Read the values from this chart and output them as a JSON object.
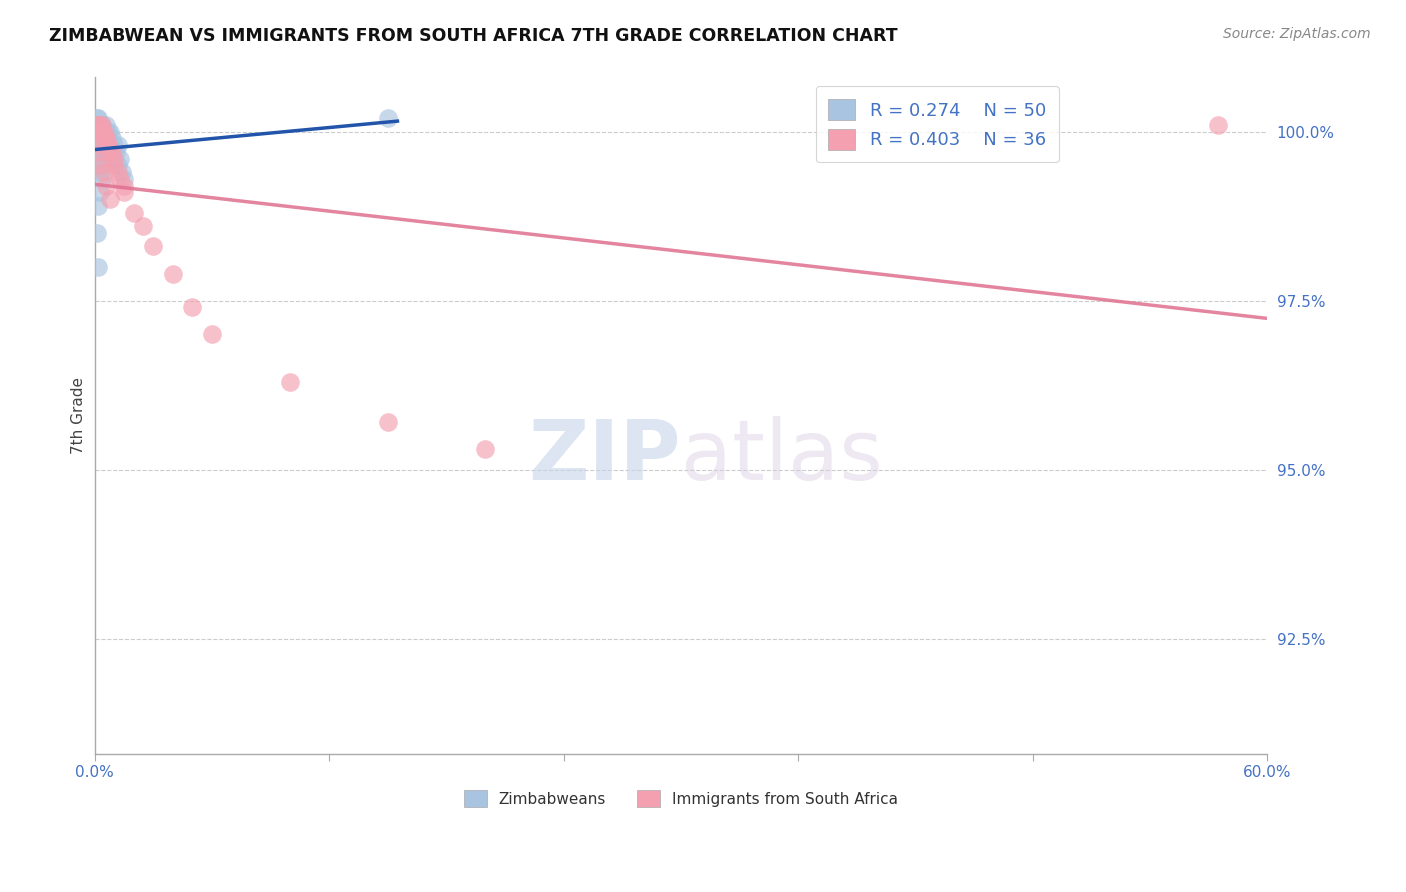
{
  "title": "ZIMBABWEAN VS IMMIGRANTS FROM SOUTH AFRICA 7TH GRADE CORRELATION CHART",
  "source": "Source: ZipAtlas.com",
  "label_blue": "Zimbabweans",
  "label_pink": "Immigrants from South Africa",
  "ylabel": "7th Grade",
  "xlim": [
    0.0,
    0.6
  ],
  "ylim": [
    0.908,
    1.008
  ],
  "yticks": [
    0.925,
    0.95,
    0.975,
    1.0
  ],
  "ytick_labels": [
    "92.5%",
    "95.0%",
    "97.5%",
    "100.0%"
  ],
  "xtick_pos": [
    0.0,
    0.12,
    0.24,
    0.36,
    0.48,
    0.6
  ],
  "xtick_labels": [
    "0.0%",
    "",
    "",
    "",
    "",
    "60.0%"
  ],
  "R_blue": 0.274,
  "N_blue": 50,
  "R_pink": 0.403,
  "N_pink": 36,
  "blue_color": "#a8c4e0",
  "pink_color": "#f4a0b0",
  "blue_line_color": "#2255aa",
  "pink_line_color": "#e07090",
  "watermark_zip": "ZIP",
  "watermark_atlas": "atlas",
  "blue_x": [
    0.001,
    0.001,
    0.001,
    0.001,
    0.001,
    0.002,
    0.002,
    0.002,
    0.002,
    0.002,
    0.002,
    0.002,
    0.002,
    0.003,
    0.003,
    0.003,
    0.003,
    0.003,
    0.003,
    0.004,
    0.004,
    0.004,
    0.004,
    0.005,
    0.005,
    0.005,
    0.006,
    0.006,
    0.007,
    0.007,
    0.008,
    0.008,
    0.009,
    0.01,
    0.01,
    0.011,
    0.012,
    0.012,
    0.013,
    0.014,
    0.015,
    0.001,
    0.002,
    0.003,
    0.004,
    0.003,
    0.002,
    0.001,
    0.002,
    0.15
  ],
  "blue_y": [
    1.002,
    1.001,
    1.001,
    1.0,
    0.999,
    1.002,
    1.001,
    1.001,
    1.0,
    1.0,
    0.999,
    0.998,
    0.997,
    1.001,
    1.001,
    1.0,
    0.999,
    0.998,
    0.997,
    1.001,
    1.0,
    0.999,
    0.997,
    1.0,
    0.999,
    0.998,
    1.001,
    0.999,
    1.0,
    0.998,
    1.0,
    0.997,
    0.999,
    0.998,
    0.996,
    0.997,
    0.998,
    0.995,
    0.996,
    0.994,
    0.993,
    0.996,
    0.995,
    0.994,
    0.993,
    0.991,
    0.989,
    0.985,
    0.98,
    1.002
  ],
  "pink_x": [
    0.001,
    0.002,
    0.003,
    0.003,
    0.004,
    0.004,
    0.005,
    0.005,
    0.006,
    0.006,
    0.007,
    0.007,
    0.008,
    0.009,
    0.01,
    0.01,
    0.012,
    0.013,
    0.015,
    0.015,
    0.002,
    0.003,
    0.004,
    0.005,
    0.006,
    0.008,
    0.02,
    0.025,
    0.03,
    0.04,
    0.05,
    0.06,
    0.1,
    0.15,
    0.2,
    0.575
  ],
  "pink_y": [
    1.001,
    1.001,
    1.001,
    1.0,
    1.001,
    1.0,
    1.0,
    0.999,
    0.999,
    0.999,
    0.998,
    0.998,
    0.997,
    0.997,
    0.996,
    0.995,
    0.994,
    0.993,
    0.992,
    0.991,
    0.998,
    0.997,
    0.995,
    0.994,
    0.992,
    0.99,
    0.988,
    0.986,
    0.983,
    0.979,
    0.974,
    0.97,
    0.963,
    0.957,
    0.953,
    1.001
  ],
  "blue_line_x": [
    0.0,
    0.155
  ],
  "pink_line_x": [
    0.0,
    0.6
  ]
}
